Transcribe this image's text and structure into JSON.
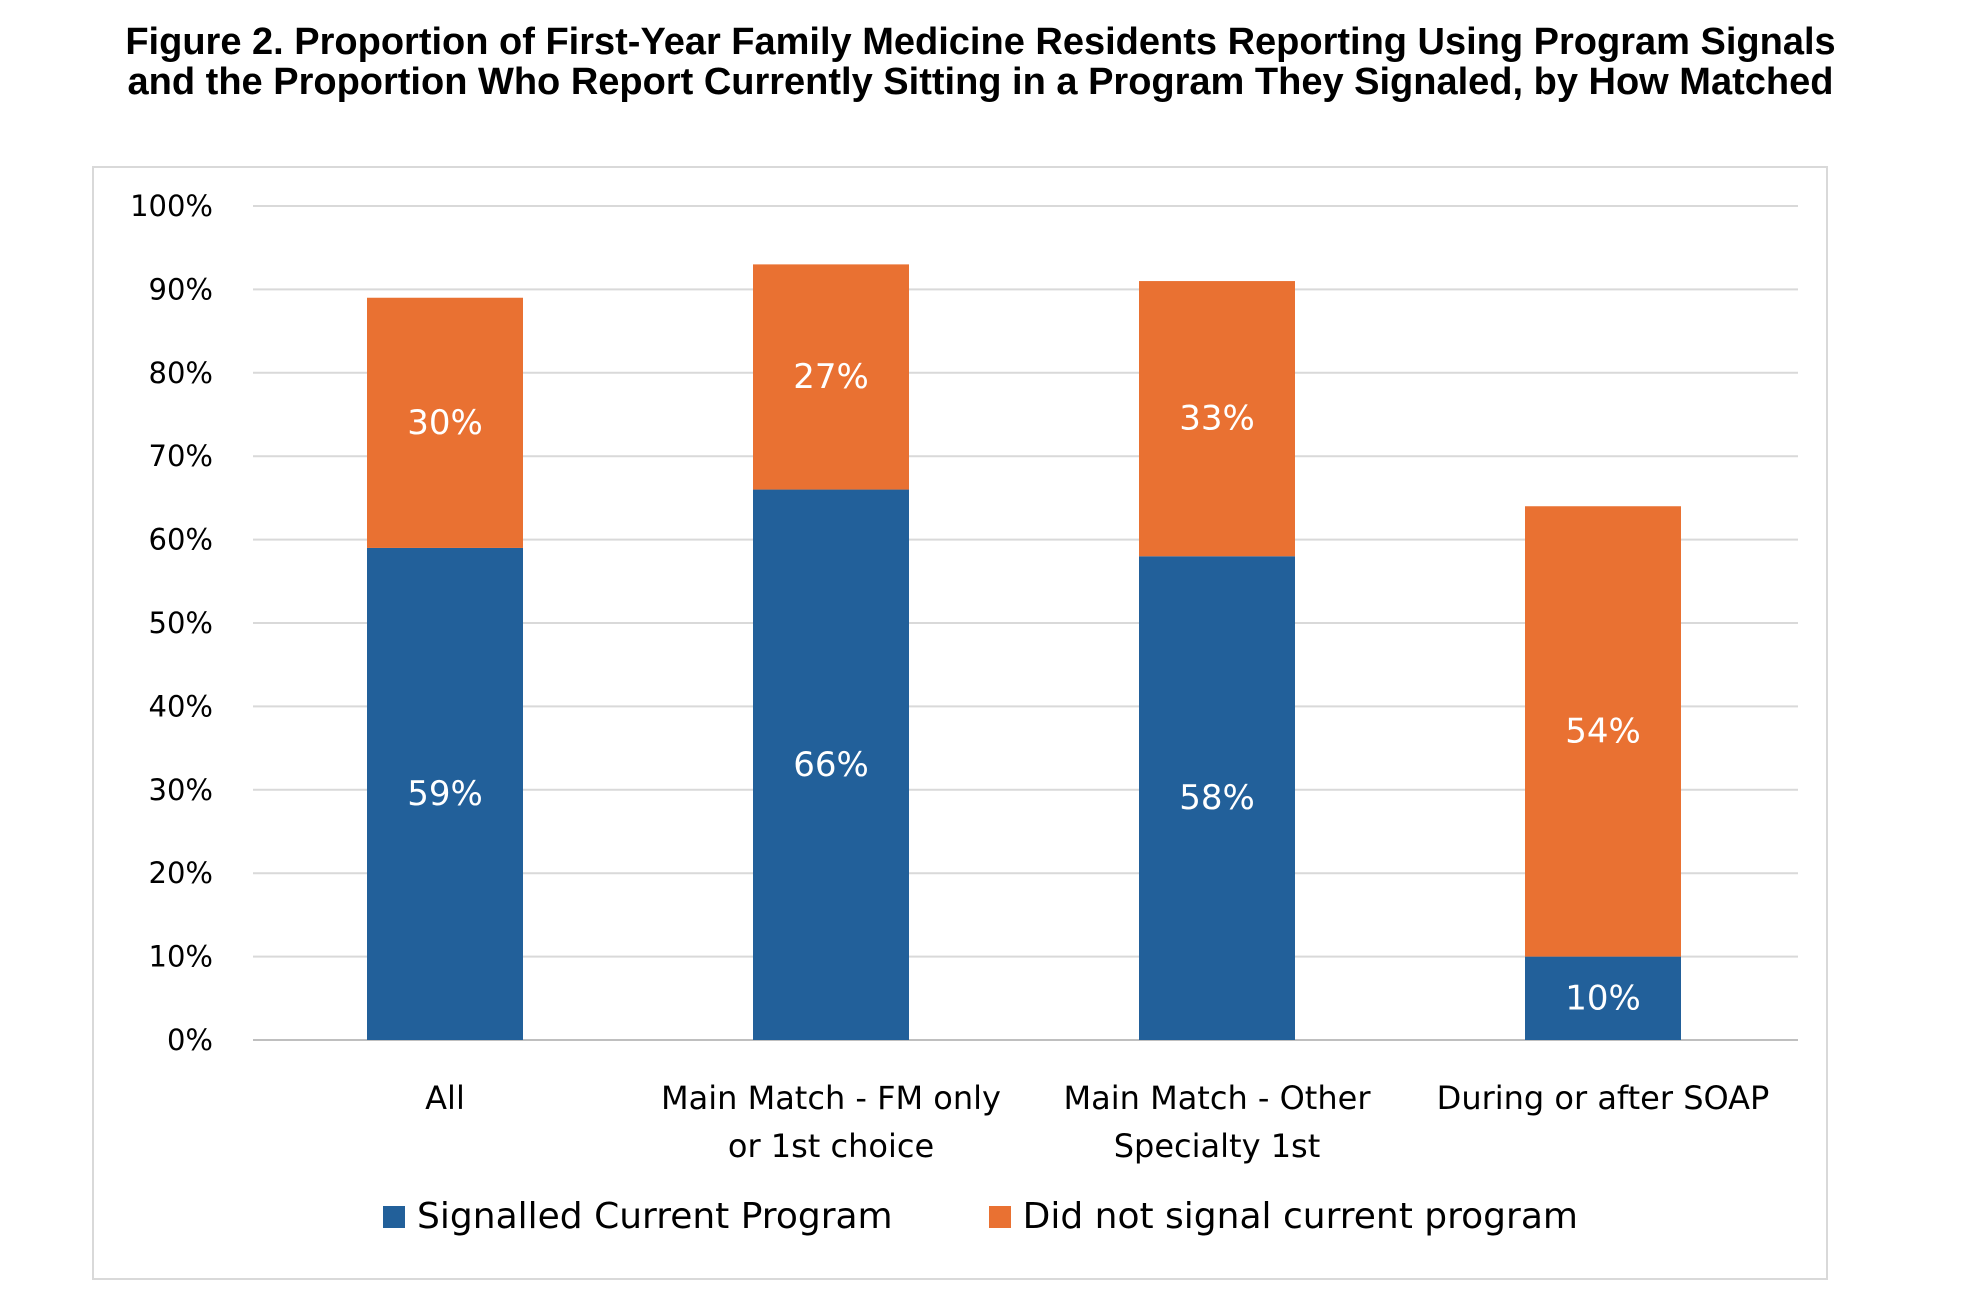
{
  "title": {
    "line1": "Figure 2. Proportion of First-Year Family Medicine Residents Reporting Using Program Signals",
    "line2": "and the Proportion Who Report Currently Sitting in a Program They Signaled, by How Matched"
  },
  "chart_data": {
    "type": "bar",
    "stacked": true,
    "categories": [
      [
        "All"
      ],
      [
        "Main Match - FM only",
        "or 1st choice"
      ],
      [
        "Main Match - Other",
        "Specialty 1st"
      ],
      [
        "During or after SOAP"
      ]
    ],
    "series": [
      {
        "name": "Signalled Current Program",
        "color": "#22609a",
        "values": [
          59,
          66,
          58,
          10
        ],
        "labels": [
          "59%",
          "66%",
          "58%",
          "10%"
        ]
      },
      {
        "name": "Did not signal current program",
        "color": "#e97132",
        "values": [
          30,
          27,
          33,
          54
        ],
        "labels": [
          "30%",
          "27%",
          "33%",
          "54%"
        ]
      }
    ],
    "ylim": [
      0,
      100
    ],
    "yticks": [
      "0%",
      "10%",
      "20%",
      "30%",
      "40%",
      "50%",
      "60%",
      "70%",
      "80%",
      "90%",
      "100%"
    ],
    "grid": true,
    "legend_position": "bottom"
  }
}
